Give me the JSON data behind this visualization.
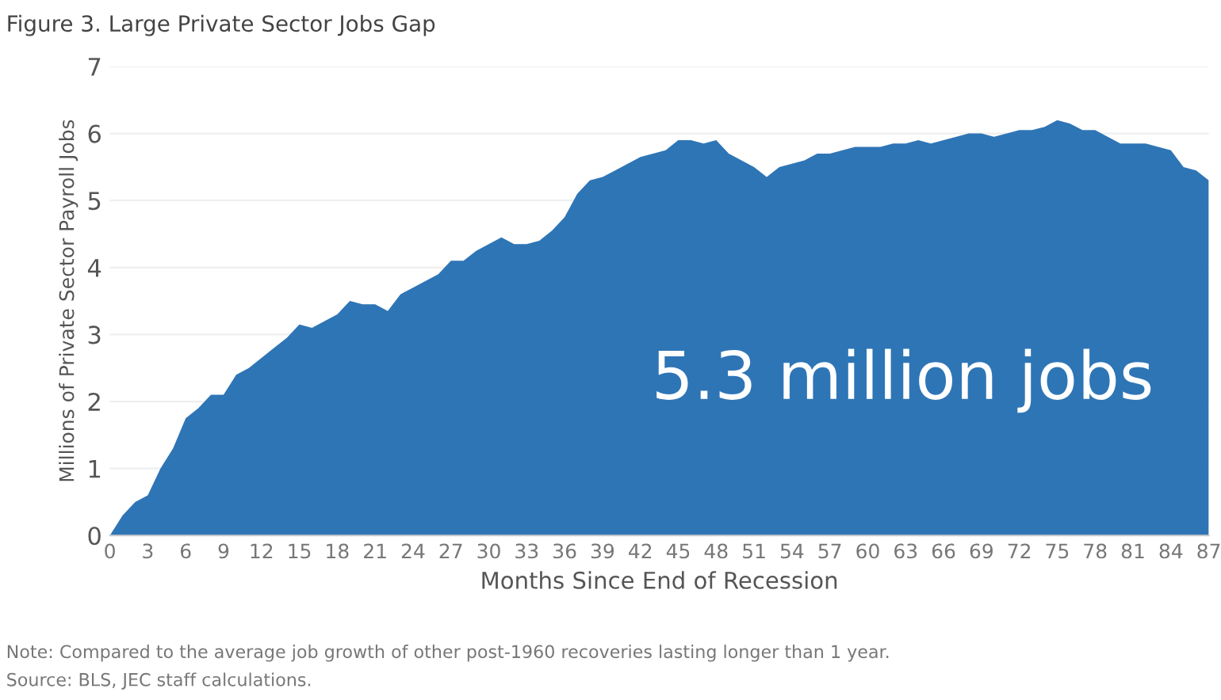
{
  "chart_data": {
    "type": "area",
    "title": "Figure 3. Large Private Sector Jobs Gap",
    "xlabel": "Months Since End of Recession",
    "ylabel": "Millions of Private Sector Payroll Jobs",
    "annotations": [
      "5.3 million jobs",
      "Note: Compared to the average job growth of other post-1960 recoveries lasting longer than 1 year.",
      "Source: BLS, JEC staff calculations."
    ],
    "x": [
      0,
      1,
      2,
      3,
      4,
      5,
      6,
      7,
      8,
      9,
      10,
      11,
      12,
      13,
      14,
      15,
      16,
      17,
      18,
      19,
      20,
      21,
      22,
      23,
      24,
      25,
      26,
      27,
      28,
      29,
      30,
      31,
      32,
      33,
      34,
      35,
      36,
      37,
      38,
      39,
      40,
      41,
      42,
      43,
      44,
      45,
      46,
      47,
      48,
      49,
      50,
      51,
      52,
      53,
      54,
      55,
      56,
      57,
      58,
      59,
      60,
      61,
      62,
      63,
      64,
      65,
      66,
      67,
      68,
      69,
      70,
      71,
      72,
      73,
      74,
      75,
      76,
      77,
      78,
      79,
      80,
      81,
      82,
      83,
      84,
      85,
      86,
      87
    ],
    "series": [
      {
        "color": "#2e75b6",
        "values": [
          0,
          0.3,
          0.5,
          0.6,
          1.0,
          1.3,
          1.75,
          1.9,
          2.1,
          2.1,
          2.4,
          2.5,
          2.65,
          2.8,
          2.95,
          3.15,
          3.1,
          3.2,
          3.3,
          3.5,
          3.45,
          3.45,
          3.35,
          3.6,
          3.7,
          3.8,
          3.9,
          4.1,
          4.1,
          4.25,
          4.35,
          4.45,
          4.35,
          4.35,
          4.4,
          4.55,
          4.75,
          5.1,
          5.3,
          5.35,
          5.45,
          5.55,
          5.65,
          5.7,
          5.75,
          5.9,
          5.9,
          5.85,
          5.9,
          5.7,
          5.6,
          5.5,
          5.35,
          5.5,
          5.55,
          5.6,
          5.7,
          5.7,
          5.75,
          5.8,
          5.8,
          5.8,
          5.85,
          5.85,
          5.9,
          5.85,
          5.9,
          5.95,
          6.0,
          6.0,
          5.95,
          6.0,
          6.05,
          6.05,
          6.1,
          6.2,
          6.15,
          6.05,
          6.05,
          5.95,
          5.85,
          5.85,
          5.85,
          5.8,
          5.75,
          5.5,
          5.45,
          5.3
        ]
      }
    ],
    "xlim": [
      0,
      87
    ],
    "xticks": [
      0,
      3,
      6,
      9,
      12,
      15,
      18,
      21,
      24,
      27,
      30,
      33,
      36,
      39,
      42,
      45,
      48,
      51,
      54,
      57,
      60,
      63,
      66,
      69,
      72,
      75,
      78,
      81,
      84,
      87
    ],
    "ylim": [
      0,
      7
    ],
    "yticks": [
      0,
      1,
      2,
      3,
      4,
      5,
      6,
      7
    ],
    "grid": "y",
    "legend": false
  }
}
